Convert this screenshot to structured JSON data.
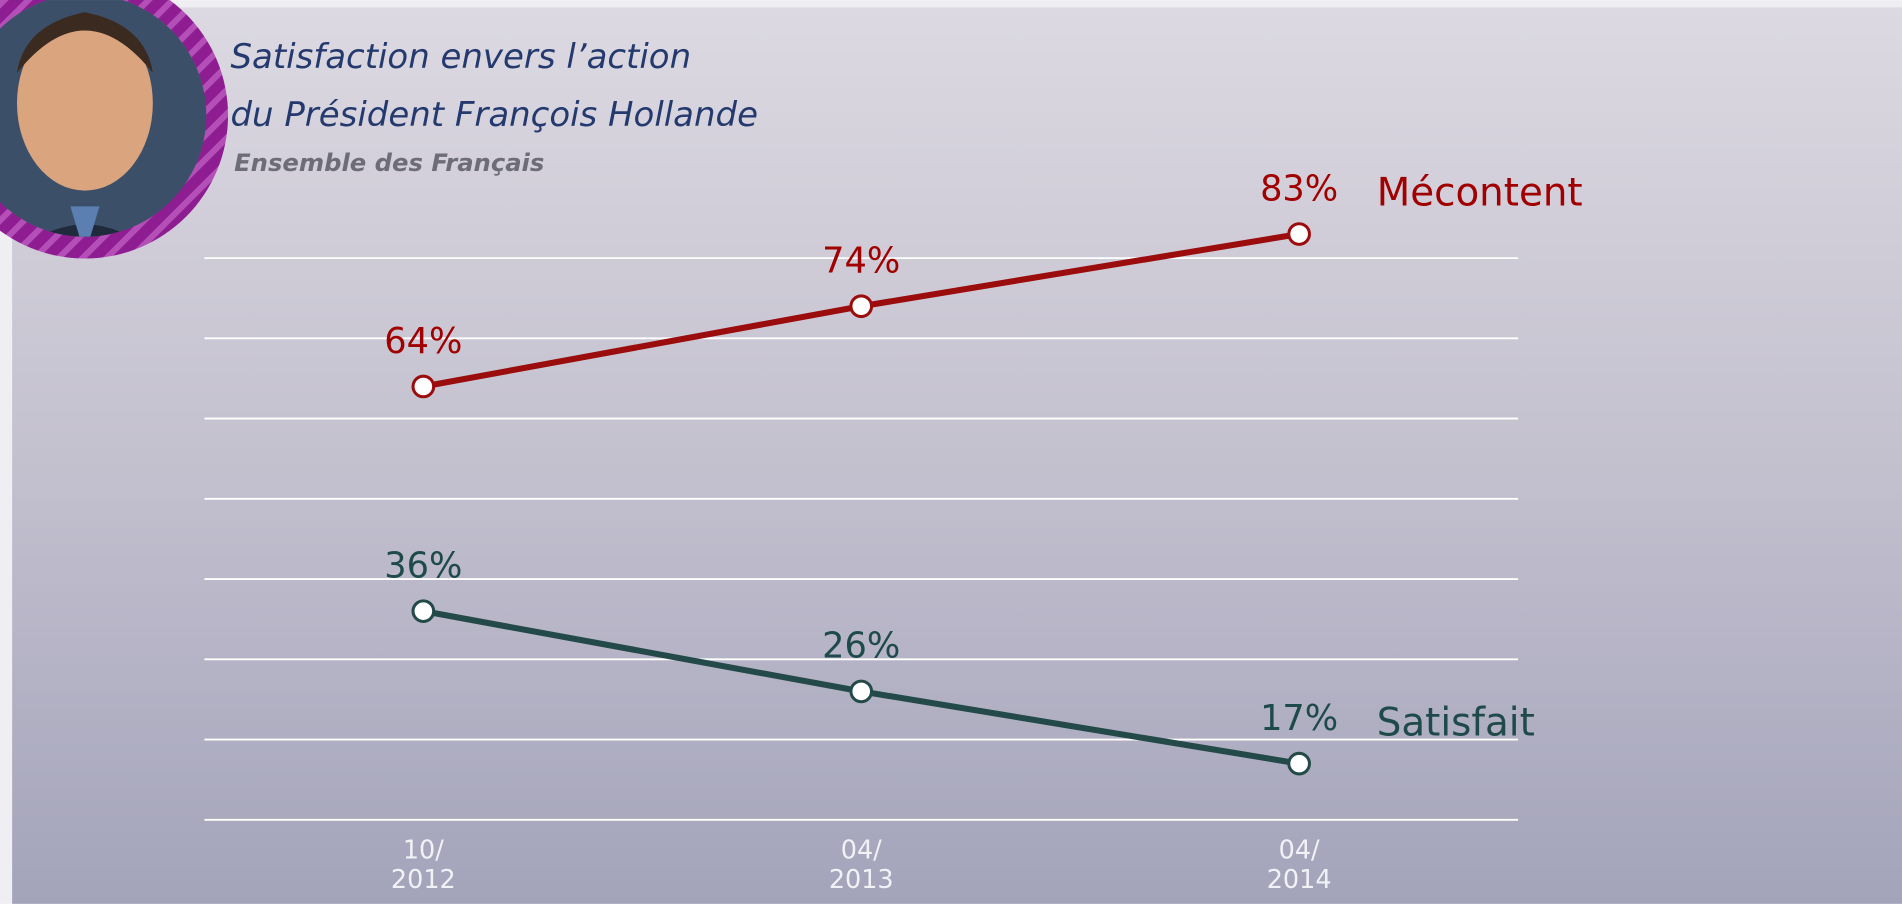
{
  "chart_data": {
    "type": "line",
    "title": [
      "Satisfaction envers l’action",
      "du Président François Hollande"
    ],
    "subtitle": "Ensemble des Français",
    "categories": [
      "10/\n2012",
      "04/\n2013",
      "04/\n2014"
    ],
    "series": [
      {
        "name": "Mécontent",
        "color": "#9b0c0c",
        "label_color": "#a00000",
        "values": [
          64,
          74,
          83
        ],
        "value_labels": [
          "64%",
          "74%",
          "83%"
        ]
      },
      {
        "name": "Satisfait",
        "color": "#234a48",
        "label_color": "#1f4a4a",
        "values": [
          36,
          26,
          17
        ],
        "value_labels": [
          "36%",
          "26%",
          "17%"
        ]
      }
    ],
    "ylim": [
      10,
      90
    ],
    "yticks": [
      10,
      20,
      30,
      40,
      50,
      60,
      70,
      80
    ],
    "grid": true
  }
}
